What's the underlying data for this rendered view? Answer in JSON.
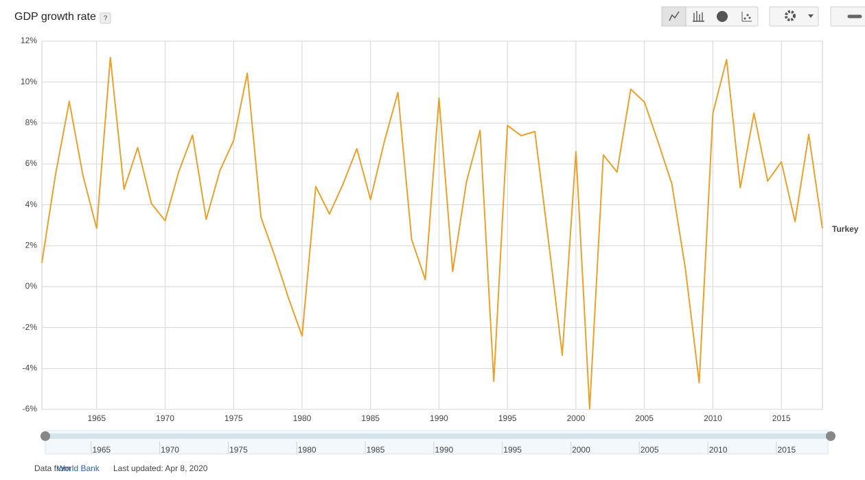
{
  "chart_data": {
    "type": "line",
    "title": "GDP growth rate",
    "help": "?",
    "x": [
      1961,
      1962,
      1963,
      1964,
      1965,
      1966,
      1967,
      1968,
      1969,
      1970,
      1971,
      1972,
      1973,
      1974,
      1975,
      1976,
      1977,
      1978,
      1979,
      1980,
      1981,
      1982,
      1983,
      1984,
      1985,
      1986,
      1987,
      1988,
      1989,
      1990,
      1991,
      1992,
      1993,
      1994,
      1995,
      1996,
      1997,
      1998,
      1999,
      2000,
      2001,
      2002,
      2003,
      2004,
      2005,
      2006,
      2007,
      2008,
      2009,
      2010,
      2011,
      2012,
      2013,
      2014,
      2015,
      2016,
      2017,
      2018
    ],
    "series": [
      {
        "name": "Turkey",
        "color": "#eba02a",
        "values": [
          1.17,
          5.5,
          9.05,
          5.43,
          2.85,
          11.2,
          4.76,
          6.8,
          4.06,
          3.22,
          5.63,
          7.41,
          3.29,
          5.67,
          7.14,
          10.43,
          3.39,
          1.51,
          -0.54,
          -2.41,
          4.89,
          3.55,
          5.03,
          6.74,
          4.26,
          7.07,
          9.49,
          2.31,
          0.34,
          9.22,
          0.74,
          5.1,
          7.64,
          -4.63,
          7.88,
          7.38,
          7.58,
          2.21,
          -3.35,
          6.6,
          -5.97,
          6.44,
          5.6,
          9.65,
          9.02,
          7.07,
          5.03,
          0.84,
          -4.7,
          8.48,
          11.1,
          4.83,
          8.48,
          5.16,
          6.1,
          3.18,
          7.44,
          2.85
        ]
      }
    ],
    "xlim": [
      1961,
      2018
    ],
    "xticks": [
      1965,
      1970,
      1975,
      1980,
      1985,
      1990,
      1995,
      2000,
      2005,
      2010,
      2015
    ],
    "ylim": [
      -6,
      12
    ],
    "yticks": [
      {
        "value": -6,
        "label": "-6%"
      },
      {
        "value": -4,
        "label": "-4%"
      },
      {
        "value": -2,
        "label": "-2%"
      },
      {
        "value": 0,
        "label": "0%"
      },
      {
        "value": 2,
        "label": "2%"
      },
      {
        "value": 4,
        "label": "4%"
      },
      {
        "value": 6,
        "label": "6%"
      },
      {
        "value": 8,
        "label": "8%"
      },
      {
        "value": 10,
        "label": "10%"
      },
      {
        "value": 12,
        "label": "12%"
      }
    ],
    "grid": true
  },
  "footer": {
    "source_prefix": "Data from",
    "source": "World Bank",
    "updated": "Last updated: Apr 8, 2020"
  }
}
